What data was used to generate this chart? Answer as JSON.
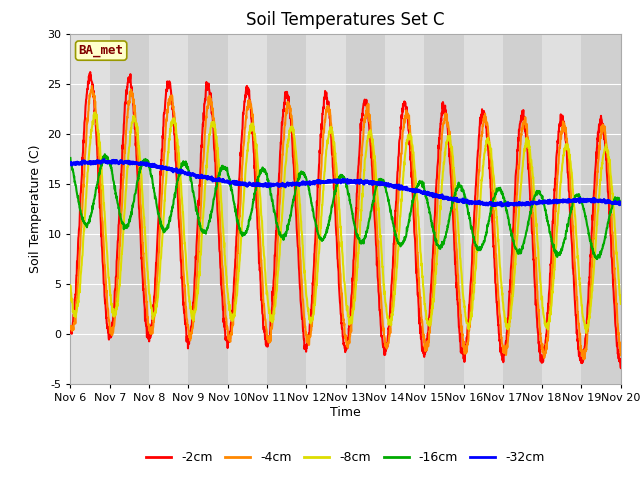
{
  "title": "Soil Temperatures Set C",
  "xlabel": "Time",
  "ylabel": "Soil Temperature (C)",
  "xlim": [
    0,
    14
  ],
  "ylim": [
    -5,
    30
  ],
  "yticks": [
    -5,
    0,
    5,
    10,
    15,
    20,
    25,
    30
  ],
  "xtick_labels": [
    "Nov 6",
    "Nov 7",
    "Nov 8",
    "Nov 9",
    "Nov 10",
    "Nov 11",
    "Nov 12",
    "Nov 13",
    "Nov 14",
    "Nov 15",
    "Nov 16",
    "Nov 17",
    "Nov 18",
    "Nov 19",
    "Nov 20"
  ],
  "annotation_text": "BA_met",
  "annotation_color": "#800000",
  "annotation_bg": "#ffffcc",
  "legend_labels": [
    "-2cm",
    "-4cm",
    "-8cm",
    "-16cm",
    "-32cm"
  ],
  "line_colors": [
    "#ff0000",
    "#ff8800",
    "#dddd00",
    "#00aa00",
    "#0000ff"
  ],
  "line_widths": [
    1.5,
    1.5,
    1.5,
    1.5,
    2.0
  ],
  "band_colors": [
    "#e0e0e0",
    "#d0d0d0"
  ],
  "grid_color": "#ffffff",
  "title_fontsize": 12,
  "axis_fontsize": 9,
  "tick_fontsize": 8,
  "n_points": 2000
}
